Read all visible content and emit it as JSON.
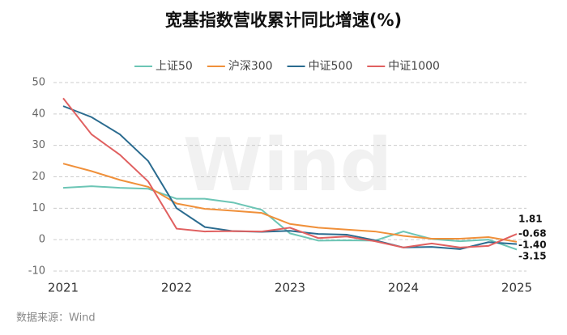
{
  "chart_data": {
    "type": "line",
    "title": "宽基指数营收累计同比增速(%)",
    "source": "数据来源：Wind",
    "watermark": "Wind",
    "categories": [
      "2021",
      null,
      null,
      null,
      "2022",
      null,
      null,
      null,
      "2023",
      null,
      null,
      null,
      "2024",
      null,
      null,
      null,
      "2025"
    ],
    "series": [
      {
        "name": "上证50",
        "color": "#6cc5b5",
        "values": [
          16.5,
          17,
          16.5,
          16.2,
          13,
          13,
          11.8,
          9.5,
          2,
          -0.3,
          -0.2,
          -0.3,
          2.6,
          0.2,
          -0.5,
          0,
          -3.15
        ]
      },
      {
        "name": "沪深300",
        "color": "#f0903a",
        "values": [
          24.2,
          21.8,
          19,
          16.8,
          11.5,
          9.8,
          9.2,
          8.5,
          5,
          3.8,
          3.2,
          2.6,
          1.2,
          0.3,
          0.3,
          0.8,
          -0.68
        ]
      },
      {
        "name": "中证500",
        "color": "#2a6b8f",
        "values": [
          42.5,
          39,
          33.5,
          25,
          10,
          4,
          2.7,
          2.5,
          2.8,
          1.8,
          1.6,
          -0.2,
          -2.5,
          -2.3,
          -3,
          -0.8,
          -1.4
        ],
        "value_labels": [
          null,
          null,
          null,
          null,
          null,
          null,
          null,
          null,
          null,
          null,
          null,
          null,
          null,
          null,
          null,
          null,
          "-1.40"
        ]
      },
      {
        "name": "中证1000",
        "color": "#e06060",
        "values": [
          45,
          33.5,
          27,
          18.5,
          3.5,
          2.6,
          2.7,
          2.6,
          3.8,
          0.5,
          1,
          -0.5,
          -2.5,
          -1.2,
          -2.5,
          -2,
          1.81
        ]
      }
    ],
    "ylim": [
      -10,
      50
    ],
    "yticks": [
      -10,
      0,
      10,
      20,
      30,
      40,
      50
    ],
    "grid": true
  }
}
